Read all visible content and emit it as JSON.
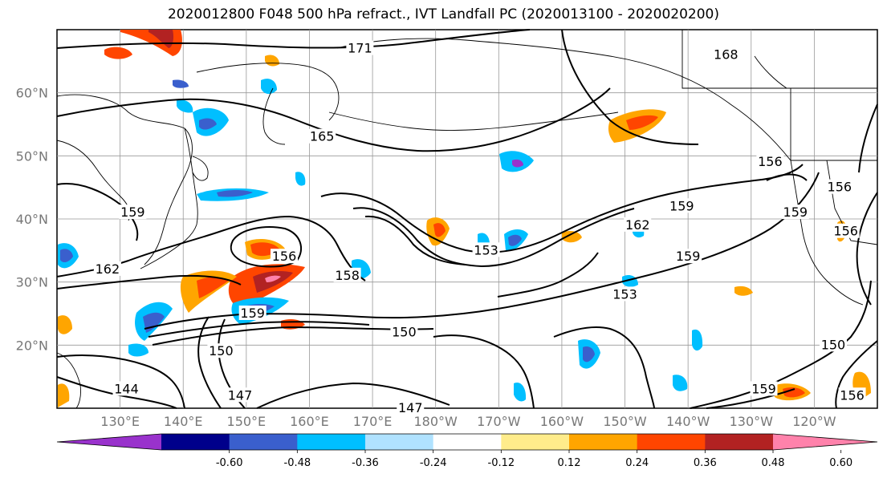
{
  "title": "2020012800 F048 500 hPa refract., IVT Landfall PC (2020013100 - 2020020200)",
  "latitudes": [
    "60°N",
    "50°N",
    "40°N",
    "30°N",
    "20°N"
  ],
  "longitudes": [
    "130°E",
    "140°E",
    "150°E",
    "160°E",
    "170°E",
    "180°W",
    "170°W",
    "160°W",
    "150°W",
    "140°W",
    "130°W",
    "120°W"
  ],
  "colorbar": {
    "colors": [
      "#9932cc",
      "#00008b",
      "#3a5fcd",
      "#00bfff",
      "#b0e2ff",
      "#ffffff",
      "#ffec8b",
      "#ffa500",
      "#ff4500",
      "#b22222",
      "#ff82ab"
    ],
    "ticks": [
      "-0.60",
      "-0.48",
      "-0.36",
      "-0.24",
      "-0.12",
      "0.12",
      "0.24",
      "0.36",
      "0.48",
      "0.60"
    ]
  },
  "contour_labels": [
    {
      "text": "171",
      "lon": 168,
      "lat": 67
    },
    {
      "text": "168",
      "lon": 226,
      "lat": 66
    },
    {
      "text": "165",
      "lon": 162,
      "lat": 53
    },
    {
      "text": "159",
      "lon": 132,
      "lat": 41
    },
    {
      "text": "162",
      "lon": 128,
      "lat": 32
    },
    {
      "text": "156",
      "lon": 156,
      "lat": 34
    },
    {
      "text": "158",
      "lon": 166,
      "lat": 31
    },
    {
      "text": "153",
      "lon": 188,
      "lat": 35
    },
    {
      "text": "162",
      "lon": 212,
      "lat": 39
    },
    {
      "text": "159",
      "lon": 219,
      "lat": 42
    },
    {
      "text": "159",
      "lon": 220,
      "lat": 34
    },
    {
      "text": "153",
      "lon": 210,
      "lat": 28
    },
    {
      "text": "159",
      "lon": 151,
      "lat": 25
    },
    {
      "text": "150",
      "lon": 175,
      "lat": 22
    },
    {
      "text": "150",
      "lon": 146,
      "lat": 19
    },
    {
      "text": "147",
      "lon": 149,
      "lat": 12
    },
    {
      "text": "144",
      "lon": 131,
      "lat": 13
    },
    {
      "text": "147",
      "lon": 176,
      "lat": 10
    },
    {
      "text": "156",
      "lon": 233,
      "lat": 49
    },
    {
      "text": "159",
      "lon": 237,
      "lat": 41
    },
    {
      "text": "156",
      "lon": 244,
      "lat": 45
    },
    {
      "text": "156",
      "lon": 245,
      "lat": 38
    },
    {
      "text": "150",
      "lon": 243,
      "lat": 20
    },
    {
      "text": "159",
      "lon": 232,
      "lat": 13
    },
    {
      "text": "156",
      "lon": 246,
      "lat": 12
    }
  ]
}
